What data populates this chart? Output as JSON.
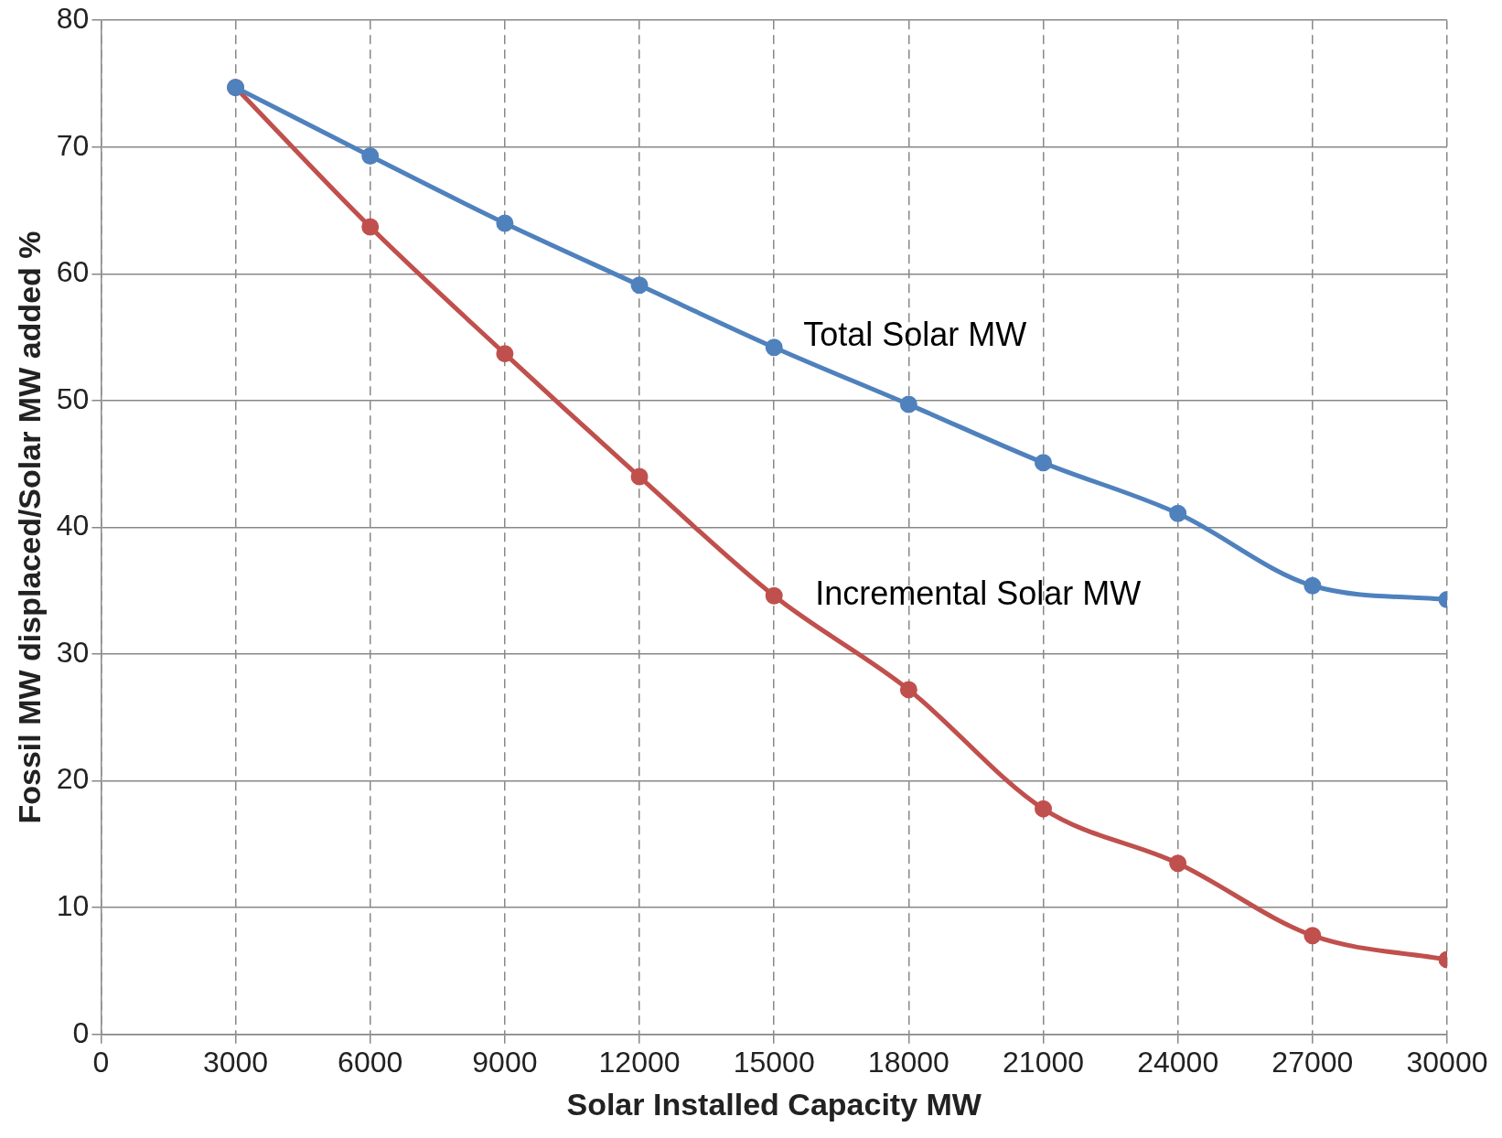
{
  "chart_data": {
    "type": "line",
    "xlabel": "Solar Installed Capacity MW",
    "ylabel": "Fossil MW displaced/Solar MW added %",
    "x": [
      3000,
      6000,
      9000,
      12000,
      15000,
      18000,
      21000,
      24000,
      27000,
      30000
    ],
    "series": [
      {
        "name": "Total Solar MW",
        "color": "#4f81bd",
        "values": [
          74.7,
          69.3,
          64.0,
          59.1,
          54.2,
          49.7,
          45.1,
          41.1,
          35.4,
          34.3
        ]
      },
      {
        "name": "Incremental Solar MW",
        "color": "#c0504d",
        "values": [
          74.7,
          63.7,
          53.7,
          44.0,
          34.6,
          27.2,
          17.8,
          13.5,
          7.8,
          5.9
        ]
      }
    ],
    "xlim": [
      0,
      30000
    ],
    "xticks": [
      0,
      3000,
      6000,
      9000,
      12000,
      15000,
      18000,
      21000,
      24000,
      27000,
      30000
    ],
    "ylim": [
      0,
      80
    ],
    "yticks": [
      0,
      10,
      20,
      30,
      40,
      50,
      60,
      70,
      80
    ],
    "grid": true,
    "legend": false,
    "marker": "circle",
    "line_style": "solid"
  }
}
